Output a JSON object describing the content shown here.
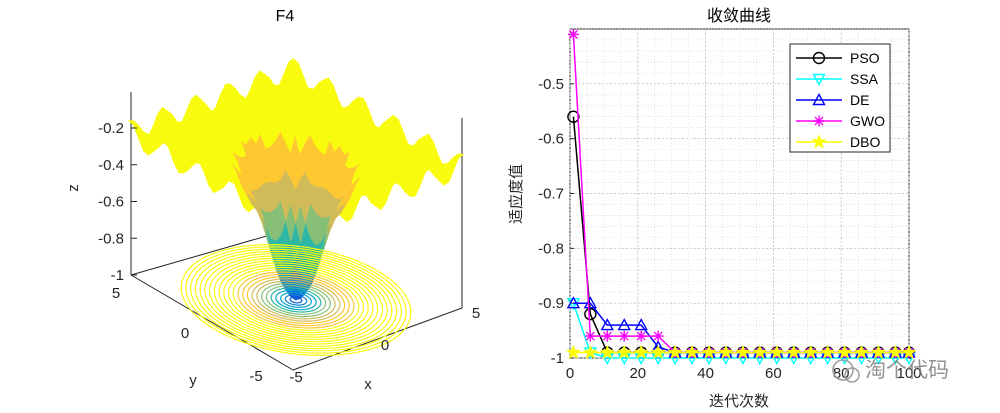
{
  "chart_data": [
    {
      "type": "surface",
      "title": "F4",
      "xlabel": "x",
      "ylabel": "y",
      "zlabel": "z",
      "x_ticks": [
        "-5",
        "0",
        "5"
      ],
      "y_ticks": [
        "-5",
        "0",
        "5"
      ],
      "z_ticks": [
        "-1",
        "-0.8",
        "-0.6",
        "-0.4",
        "-0.2"
      ],
      "xlim": [
        -5,
        5
      ],
      "ylim": [
        -5,
        5
      ],
      "zlim": [
        -1,
        -0.1
      ],
      "colormap": [
        "#352a87",
        "#0f5cdd",
        "#1481d6",
        "#06a4ca",
        "#2eb7a4",
        "#87bf77",
        "#d1bb59",
        "#fec832",
        "#f9fb0e"
      ]
    },
    {
      "type": "line",
      "title": "收敛曲线",
      "xlabel": "迭代次数",
      "ylabel": "适应度值",
      "xlim": [
        0,
        100
      ],
      "ylim": [
        -1,
        -0.4
      ],
      "x_ticks": [
        0,
        20,
        40,
        60,
        80,
        100
      ],
      "y_ticks": [
        -1,
        -0.9,
        -0.8,
        -0.7,
        -0.6,
        -0.5
      ],
      "grid": true,
      "legend_position": "top-right",
      "x": [
        1,
        6,
        11,
        16,
        21,
        26,
        31,
        36,
        41,
        46,
        51,
        56,
        61,
        66,
        71,
        76,
        81,
        86,
        91,
        96,
        100
      ],
      "series": [
        {
          "name": "PSO",
          "color": "#000000",
          "marker": "circle",
          "values": [
            -0.56,
            -0.92,
            -0.99,
            -0.99,
            -0.99,
            -0.99,
            -0.99,
            -0.99,
            -0.99,
            -0.99,
            -0.99,
            -0.99,
            -0.99,
            -0.99,
            -0.99,
            -0.99,
            -0.99,
            -0.99,
            -0.99,
            -0.99,
            -0.99
          ]
        },
        {
          "name": "SSA",
          "color": "#00ffff",
          "marker": "triangle-down",
          "values": [
            -0.9,
            -0.99,
            -1.0,
            -1.0,
            -1.0,
            -1.0,
            -1.0,
            -1.0,
            -1.0,
            -1.0,
            -1.0,
            -1.0,
            -1.0,
            -1.0,
            -1.0,
            -1.0,
            -1.0,
            -1.0,
            -1.0,
            -1.0,
            -1.0
          ]
        },
        {
          "name": "DE",
          "color": "#0000ff",
          "marker": "triangle-up",
          "values": [
            -0.9,
            -0.9,
            -0.94,
            -0.94,
            -0.94,
            -0.98,
            -0.99,
            -0.99,
            -0.99,
            -0.99,
            -0.99,
            -0.99,
            -0.99,
            -0.99,
            -0.99,
            -0.99,
            -0.99,
            -0.99,
            -0.99,
            -0.99,
            -0.99
          ]
        },
        {
          "name": "GWO",
          "color": "#ff00ff",
          "marker": "asterisk",
          "values": [
            -0.41,
            -0.96,
            -0.96,
            -0.96,
            -0.96,
            -0.96,
            -0.99,
            -0.99,
            -0.99,
            -0.99,
            -0.99,
            -0.99,
            -0.99,
            -0.99,
            -0.99,
            -0.99,
            -0.99,
            -0.99,
            -0.99,
            -0.99,
            -0.99
          ]
        },
        {
          "name": "DBO",
          "color": "#ffff00",
          "marker": "star",
          "values": [
            -0.99,
            -0.99,
            -0.99,
            -0.99,
            -0.99,
            -0.99,
            -0.99,
            -0.99,
            -0.99,
            -0.99,
            -0.99,
            -0.99,
            -0.99,
            -0.99,
            -0.99,
            -0.99,
            -0.99,
            -0.99,
            -0.99,
            -0.99,
            -0.99
          ]
        }
      ]
    }
  ],
  "watermark": {
    "text": "淘个代码"
  }
}
